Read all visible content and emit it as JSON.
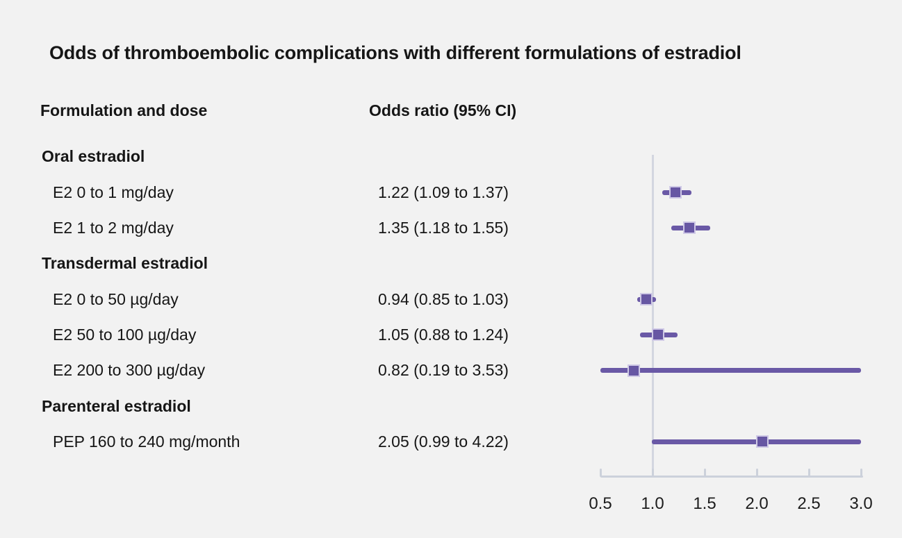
{
  "title": "Odds of thromboembolic complications with different formulations of estradiol",
  "columns": {
    "formulation": "Formulation and dose",
    "odds_ratio": "Odds ratio (95% CI)"
  },
  "colors": {
    "background": "#f2f2f2",
    "text": "#161616",
    "ci_line": "#6a59a6",
    "marker_fill": "#6757a3",
    "marker_border": "#cfc9e6",
    "axis": "#ccd1db",
    "reference_line": "#d3d6e0"
  },
  "chart_data": {
    "type": "forest",
    "title": "Odds of thromboembolic complications with different formulations of estradiol",
    "xlabel": "",
    "ylabel": "",
    "xlim": [
      0.5,
      3.0
    ],
    "reference_value": 1.0,
    "x_ticks": [
      "0.5",
      "1.0",
      "1.5",
      "2.0",
      "2.5",
      "3.0"
    ],
    "x_tick_values": [
      0.5,
      1.0,
      1.5,
      2.0,
      2.5,
      3.0
    ],
    "rows": [
      {
        "kind": "group",
        "label": "Oral estradiol"
      },
      {
        "kind": "item",
        "label": "E2 0 to 1 mg/day",
        "or_text": "1.22 (1.09 to 1.37)",
        "est": 1.22,
        "lo": 1.09,
        "hi": 1.37
      },
      {
        "kind": "item",
        "label": "E2 1 to 2 mg/day",
        "or_text": "1.35 (1.18 to 1.55)",
        "est": 1.35,
        "lo": 1.18,
        "hi": 1.55
      },
      {
        "kind": "group",
        "label": "Transdermal estradiol"
      },
      {
        "kind": "item",
        "label": "E2 0 to 50 µg/day",
        "or_text": "0.94 (0.85 to 1.03)",
        "est": 0.94,
        "lo": 0.85,
        "hi": 1.03
      },
      {
        "kind": "item",
        "label": "E2 50 to 100 µg/day",
        "or_text": "1.05 (0.88 to 1.24)",
        "est": 1.05,
        "lo": 0.88,
        "hi": 1.24
      },
      {
        "kind": "item",
        "label": "E2 200 to 300 µg/day",
        "or_text": "0.82 (0.19 to 3.53)",
        "est": 0.82,
        "lo": 0.19,
        "hi": 3.53
      },
      {
        "kind": "group",
        "label": "Parenteral estradiol"
      },
      {
        "kind": "item",
        "label": "PEP 160 to 240 mg/month",
        "or_text": "2.05 (0.99 to 4.22)",
        "est": 2.05,
        "lo": 0.99,
        "hi": 4.22
      }
    ]
  }
}
